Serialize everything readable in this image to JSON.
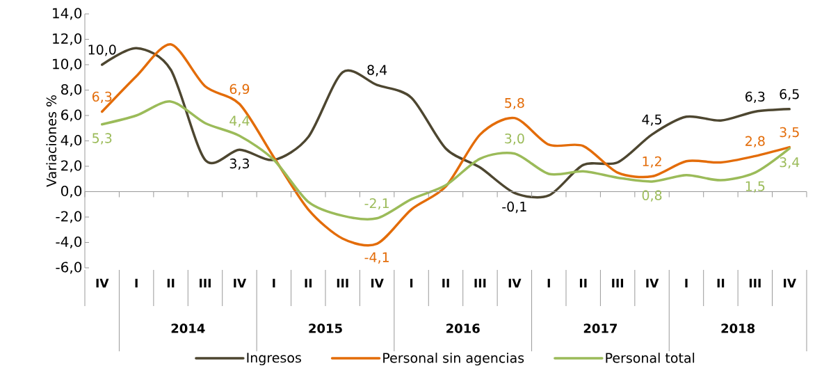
{
  "chart_data": {
    "type": "line",
    "ylabel": "Variaciones %",
    "categories": [
      "IV",
      "I",
      "II",
      "III",
      "IV",
      "I",
      "II",
      "III",
      "IV",
      "I",
      "II",
      "III",
      "IV",
      "I",
      "II",
      "III",
      "IV",
      "I",
      "II",
      "III",
      "IV"
    ],
    "annotations": [
      "2014",
      "2015",
      "2016",
      "2017",
      "2018"
    ],
    "series": [
      {
        "name": "Ingresos",
        "color": "#4d4630",
        "values": [
          10.0,
          11.3,
          9.6,
          2.5,
          3.3,
          2.5,
          4.3,
          9.4,
          8.4,
          7.4,
          3.4,
          1.9,
          -0.1,
          -0.3,
          2.1,
          2.3,
          4.5,
          5.9,
          5.6,
          6.3,
          6.5
        ],
        "value_labels": [
          "10,0",
          null,
          null,
          null,
          "3,3",
          null,
          null,
          null,
          "8,4",
          null,
          null,
          null,
          "-0,1",
          null,
          null,
          null,
          "4,5",
          null,
          null,
          "6,3",
          "6,5"
        ]
      },
      {
        "name": "Personal sin agencias",
        "color": "#e36c09",
        "values": [
          6.3,
          9.1,
          11.6,
          8.3,
          6.9,
          2.7,
          -1.4,
          -3.7,
          -4.1,
          -1.4,
          0.4,
          4.5,
          5.8,
          3.7,
          3.6,
          1.5,
          1.2,
          2.4,
          2.3,
          2.8,
          3.5
        ],
        "value_labels": [
          "6,3",
          null,
          null,
          null,
          "6,9",
          null,
          null,
          null,
          "-4,1",
          null,
          null,
          null,
          "5,8",
          null,
          null,
          null,
          "1,2",
          null,
          null,
          "2,8",
          "3,5"
        ]
      },
      {
        "name": "Personal total",
        "color": "#9bbb59",
        "values": [
          5.3,
          6.0,
          7.1,
          5.4,
          4.4,
          2.5,
          -0.8,
          -1.9,
          -2.1,
          -0.6,
          0.5,
          2.6,
          3.0,
          1.4,
          1.6,
          1.1,
          0.8,
          1.3,
          0.9,
          1.5,
          3.4
        ],
        "value_labels": [
          "5,3",
          null,
          null,
          null,
          "4,4",
          null,
          null,
          null,
          "-2,1",
          null,
          null,
          null,
          "3,0",
          null,
          null,
          null,
          "0,8",
          null,
          null,
          "1,5",
          "3,4"
        ]
      }
    ],
    "ylim": [
      -6,
      14
    ],
    "yticks": [
      {
        "value": -6,
        "label": "-6,0"
      },
      {
        "value": -4,
        "label": "-4,0"
      },
      {
        "value": -2,
        "label": "-2,0"
      },
      {
        "value": 0,
        "label": "0,0"
      },
      {
        "value": 2,
        "label": "2,0"
      },
      {
        "value": 4,
        "label": "4,0"
      },
      {
        "value": 6,
        "label": "6,0"
      },
      {
        "value": 8,
        "label": "8,0"
      },
      {
        "value": 10,
        "label": "10,0"
      },
      {
        "value": 12,
        "label": "12,0"
      },
      {
        "value": 14,
        "label": "14,0"
      }
    ],
    "legend": "bottom"
  }
}
